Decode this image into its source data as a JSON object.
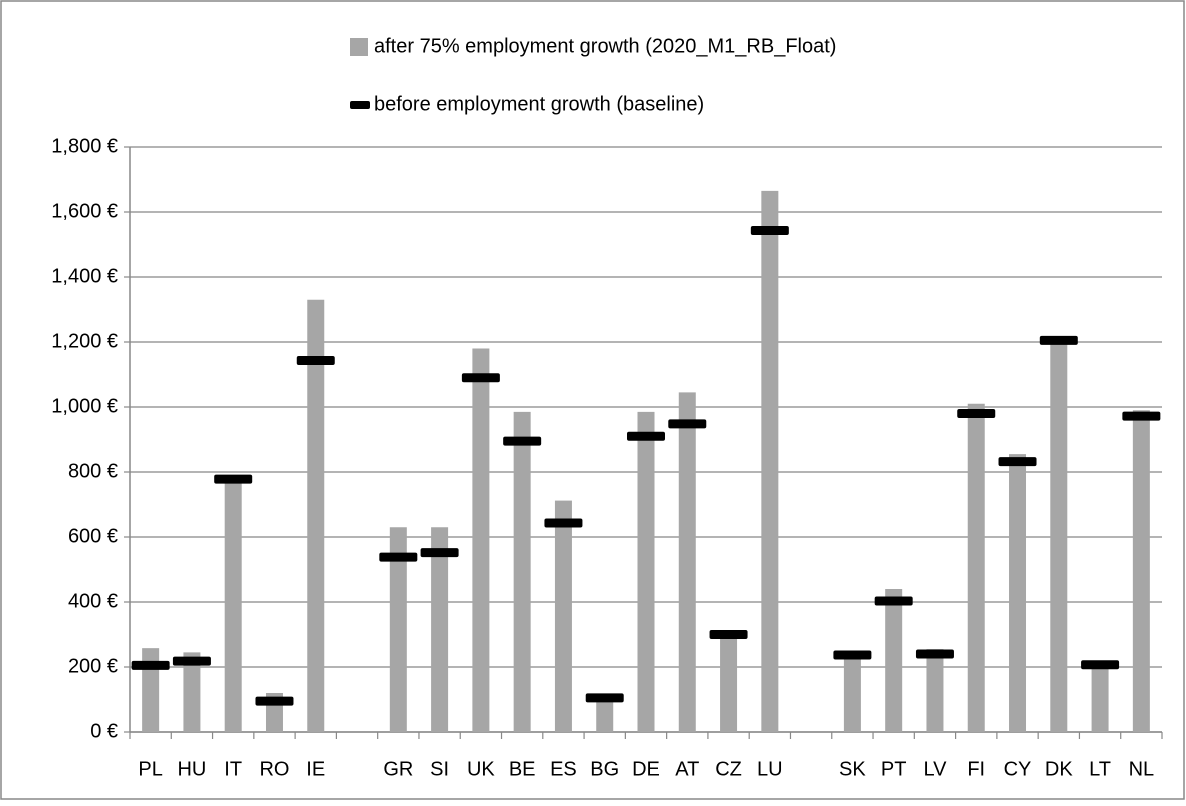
{
  "chart_data": {
    "type": "bar",
    "categories": [
      "PL",
      "HU",
      "IT",
      "RO",
      "IE",
      null,
      "GR",
      "SI",
      "UK",
      "BE",
      "ES",
      "BG",
      "DE",
      "AT",
      "CZ",
      "LU",
      null,
      "SK",
      "PT",
      "LV",
      "FI",
      "CY",
      "DK",
      "LT",
      "NL"
    ],
    "series": [
      {
        "name": "after 75% employment growth (2020_M1_RB_Float)",
        "color": "#a6a6a6",
        "mark": "bar",
        "values": [
          258,
          245,
          780,
          120,
          1330,
          null,
          630,
          630,
          1180,
          985,
          712,
          105,
          985,
          1045,
          300,
          1665,
          null,
          230,
          440,
          255,
          1010,
          855,
          1205,
          205,
          990
        ]
      },
      {
        "name": "before employment growth (baseline)",
        "color": "#000000",
        "mark": "dash",
        "values": [
          205,
          218,
          778,
          95,
          1143,
          null,
          538,
          552,
          1090,
          895,
          643,
          105,
          910,
          948,
          300,
          1543,
          null,
          237,
          403,
          240,
          980,
          832,
          1205,
          207,
          972
        ]
      }
    ],
    "ylim": [
      0,
      1800
    ],
    "yticks": [
      {
        "value": 0,
        "label": "0 €"
      },
      {
        "value": 200,
        "label": "200 €"
      },
      {
        "value": 400,
        "label": "400 €"
      },
      {
        "value": 600,
        "label": "600 €"
      },
      {
        "value": 800,
        "label": "800 €"
      },
      {
        "value": 1000,
        "label": "1,000 €"
      },
      {
        "value": 1200,
        "label": "1,200 €"
      },
      {
        "value": 1400,
        "label": "1,400 €"
      },
      {
        "value": 1600,
        "label": "1,600 €"
      },
      {
        "value": 1800,
        "label": "1,800 €"
      }
    ],
    "grid": true
  }
}
